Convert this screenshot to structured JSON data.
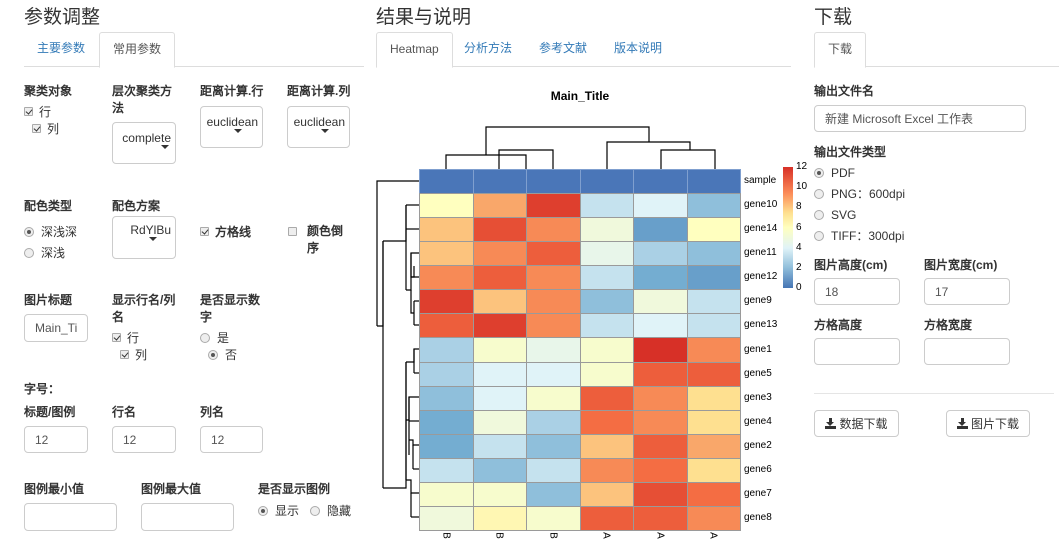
{
  "left_panel": {
    "title": "参数调整",
    "tabs": [
      {
        "label": "主要参数",
        "active": false
      },
      {
        "label": "常用参数",
        "active": true
      }
    ],
    "cluster_target": {
      "label": "聚类对象",
      "options": [
        {
          "label": "行",
          "checked": true
        },
        {
          "label": "列",
          "checked": true
        }
      ]
    },
    "cluster_method": {
      "label": "层次聚类方法",
      "value": "complete"
    },
    "distance_row": {
      "label": "距离计算.行",
      "value": "euclidean"
    },
    "distance_col": {
      "label": "距离计算.列",
      "value": "euclidean"
    },
    "color_type": {
      "label": "配色类型",
      "options": [
        {
          "label": "深浅深",
          "selected": true
        },
        {
          "label": "深浅",
          "selected": false
        }
      ]
    },
    "color_scheme": {
      "label": "配色方案",
      "value": "RdYlBu"
    },
    "grid_lines": {
      "label": "方格线",
      "checked": true
    },
    "reverse_color": {
      "label": "颜色倒序",
      "checked": false
    },
    "image_title": {
      "label": "图片标题",
      "value": "Main_Ti"
    },
    "show_names": {
      "label": "显示行名/列名",
      "options": [
        {
          "label": "行",
          "checked": true
        },
        {
          "label": "列",
          "checked": true
        }
      ]
    },
    "show_numbers": {
      "label": "是否显示数字",
      "options": [
        {
          "label": "是",
          "selected": false
        },
        {
          "label": "否",
          "selected": true
        }
      ]
    },
    "font_size": {
      "label": "字号：",
      "title_legend": {
        "label": "标题/图例",
        "value": "12"
      },
      "row_name": {
        "label": "行名",
        "value": "12"
      },
      "col_name": {
        "label": "列名",
        "value": "12"
      }
    },
    "legend_min": {
      "label": "图例最小值",
      "value": ""
    },
    "legend_max": {
      "label": "图例最大值",
      "value": ""
    },
    "show_legend": {
      "label": "是否显示图例",
      "options": [
        {
          "label": "显示",
          "selected": true
        },
        {
          "label": "隐藏",
          "selected": false
        }
      ]
    }
  },
  "center_panel": {
    "title": "结果与说明",
    "tabs": [
      {
        "label": "Heatmap",
        "active": true
      },
      {
        "label": "分析方法",
        "active": false
      },
      {
        "label": "参考文献",
        "active": false
      },
      {
        "label": "版本说明",
        "active": false
      }
    ]
  },
  "right_panel": {
    "title": "下载",
    "tabs": [
      {
        "label": "下载",
        "active": true
      }
    ],
    "file_name": {
      "label": "输出文件名",
      "value": "新建 Microsoft Excel 工作表"
    },
    "file_type": {
      "label": "输出文件类型",
      "options": [
        {
          "label": "PDF",
          "selected": true
        },
        {
          "label": "PNG：600dpi",
          "selected": false
        },
        {
          "label": "SVG",
          "selected": false
        },
        {
          "label": "TIFF：300dpi",
          "selected": false
        }
      ]
    },
    "img_height": {
      "label": "图片高度(cm)",
      "value": "18"
    },
    "img_width": {
      "label": "图片宽度(cm)",
      "value": "17"
    },
    "cell_height": {
      "label": "方格高度",
      "value": ""
    },
    "cell_width": {
      "label": "方格宽度",
      "value": ""
    },
    "data_download": {
      "label": "数据下载",
      "icon": "download-icon"
    },
    "image_download": {
      "label": "图片下载",
      "icon": "download-icon"
    }
  },
  "chart_data": {
    "type": "heatmap",
    "title": "Main_Title",
    "colormap": "RdYlBu (reversed: blue=low, red=high)",
    "colorbar": {
      "min": 0,
      "max": 12,
      "ticks": [
        0,
        2,
        4,
        6,
        8,
        10,
        12
      ]
    },
    "x": [
      "B",
      "B",
      "B",
      "A",
      "A",
      "A"
    ],
    "y": [
      "sample",
      "gene10",
      "gene14",
      "gene11",
      "gene12",
      "gene9",
      "gene13",
      "gene1",
      "gene5",
      "gene3",
      "gene4",
      "gene2",
      "gene6",
      "gene7",
      "gene8"
    ],
    "values": [
      [
        0,
        0,
        0,
        0,
        0,
        0
      ],
      [
        6,
        9,
        11.5,
        3.5,
        4,
        2.5
      ],
      [
        8.5,
        11,
        9.5,
        5,
        1.5,
        6
      ],
      [
        8.5,
        9.5,
        10.5,
        4.5,
        3,
        2.5
      ],
      [
        9.5,
        10.5,
        9.5,
        3.5,
        2,
        1.5
      ],
      [
        11.5,
        8.5,
        9.5,
        2.5,
        5,
        3.5
      ],
      [
        10.5,
        11.5,
        9.5,
        3.5,
        4,
        3.5
      ],
      [
        3,
        5.5,
        4.5,
        5.5,
        12,
        9.5
      ],
      [
        3,
        4,
        4,
        5.5,
        10.5,
        10.5
      ],
      [
        2.5,
        4,
        5.5,
        10.5,
        9.5,
        8
      ],
      [
        2,
        5,
        3,
        10,
        9.5,
        8
      ],
      [
        2,
        3.5,
        2.5,
        8.5,
        10.5,
        9
      ],
      [
        3.5,
        2.5,
        3.5,
        9.5,
        10,
        8
      ],
      [
        5.5,
        5.5,
        2.5,
        8.5,
        11,
        10
      ],
      [
        5,
        6.5,
        5.5,
        10.5,
        10.5,
        9.5
      ]
    ],
    "row_dendrogram": true,
    "col_dendrogram": true,
    "legend_position": "right"
  }
}
